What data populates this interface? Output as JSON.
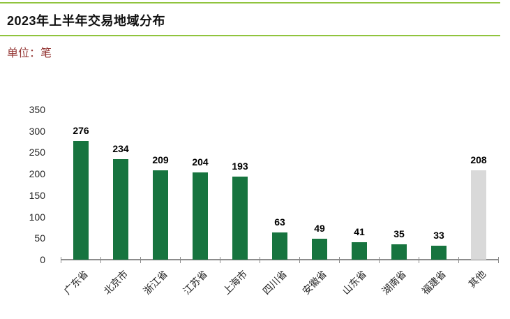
{
  "header": {
    "title": "2023年上半年交易地域分布",
    "unit_label": "单位：笔"
  },
  "colors": {
    "accent_line": "#90c43e",
    "bar_primary": "#17743f",
    "bar_other": "#d9d9d9",
    "unit_text": "#953735",
    "axis_line": "#8c8c8c",
    "value_label": "#000000",
    "tick_label": "#262626"
  },
  "chart_data": {
    "type": "bar",
    "title": "2023年上半年交易地域分布",
    "unit": "单位：笔",
    "categories": [
      "广东省",
      "北京市",
      "浙江省",
      "江苏省",
      "上海市",
      "四川省",
      "安徽省",
      "山东省",
      "湖南省",
      "福建省",
      "其他"
    ],
    "values": [
      276,
      234,
      209,
      204,
      193,
      63,
      49,
      41,
      35,
      33,
      208
    ],
    "other_bar_index": 10,
    "yticks": [
      0,
      50,
      100,
      150,
      200,
      250,
      300,
      350
    ],
    "ylim": [
      0,
      350
    ],
    "grid": false,
    "legend": "none",
    "value_labels": true,
    "xlabel": "",
    "ylabel": ""
  }
}
